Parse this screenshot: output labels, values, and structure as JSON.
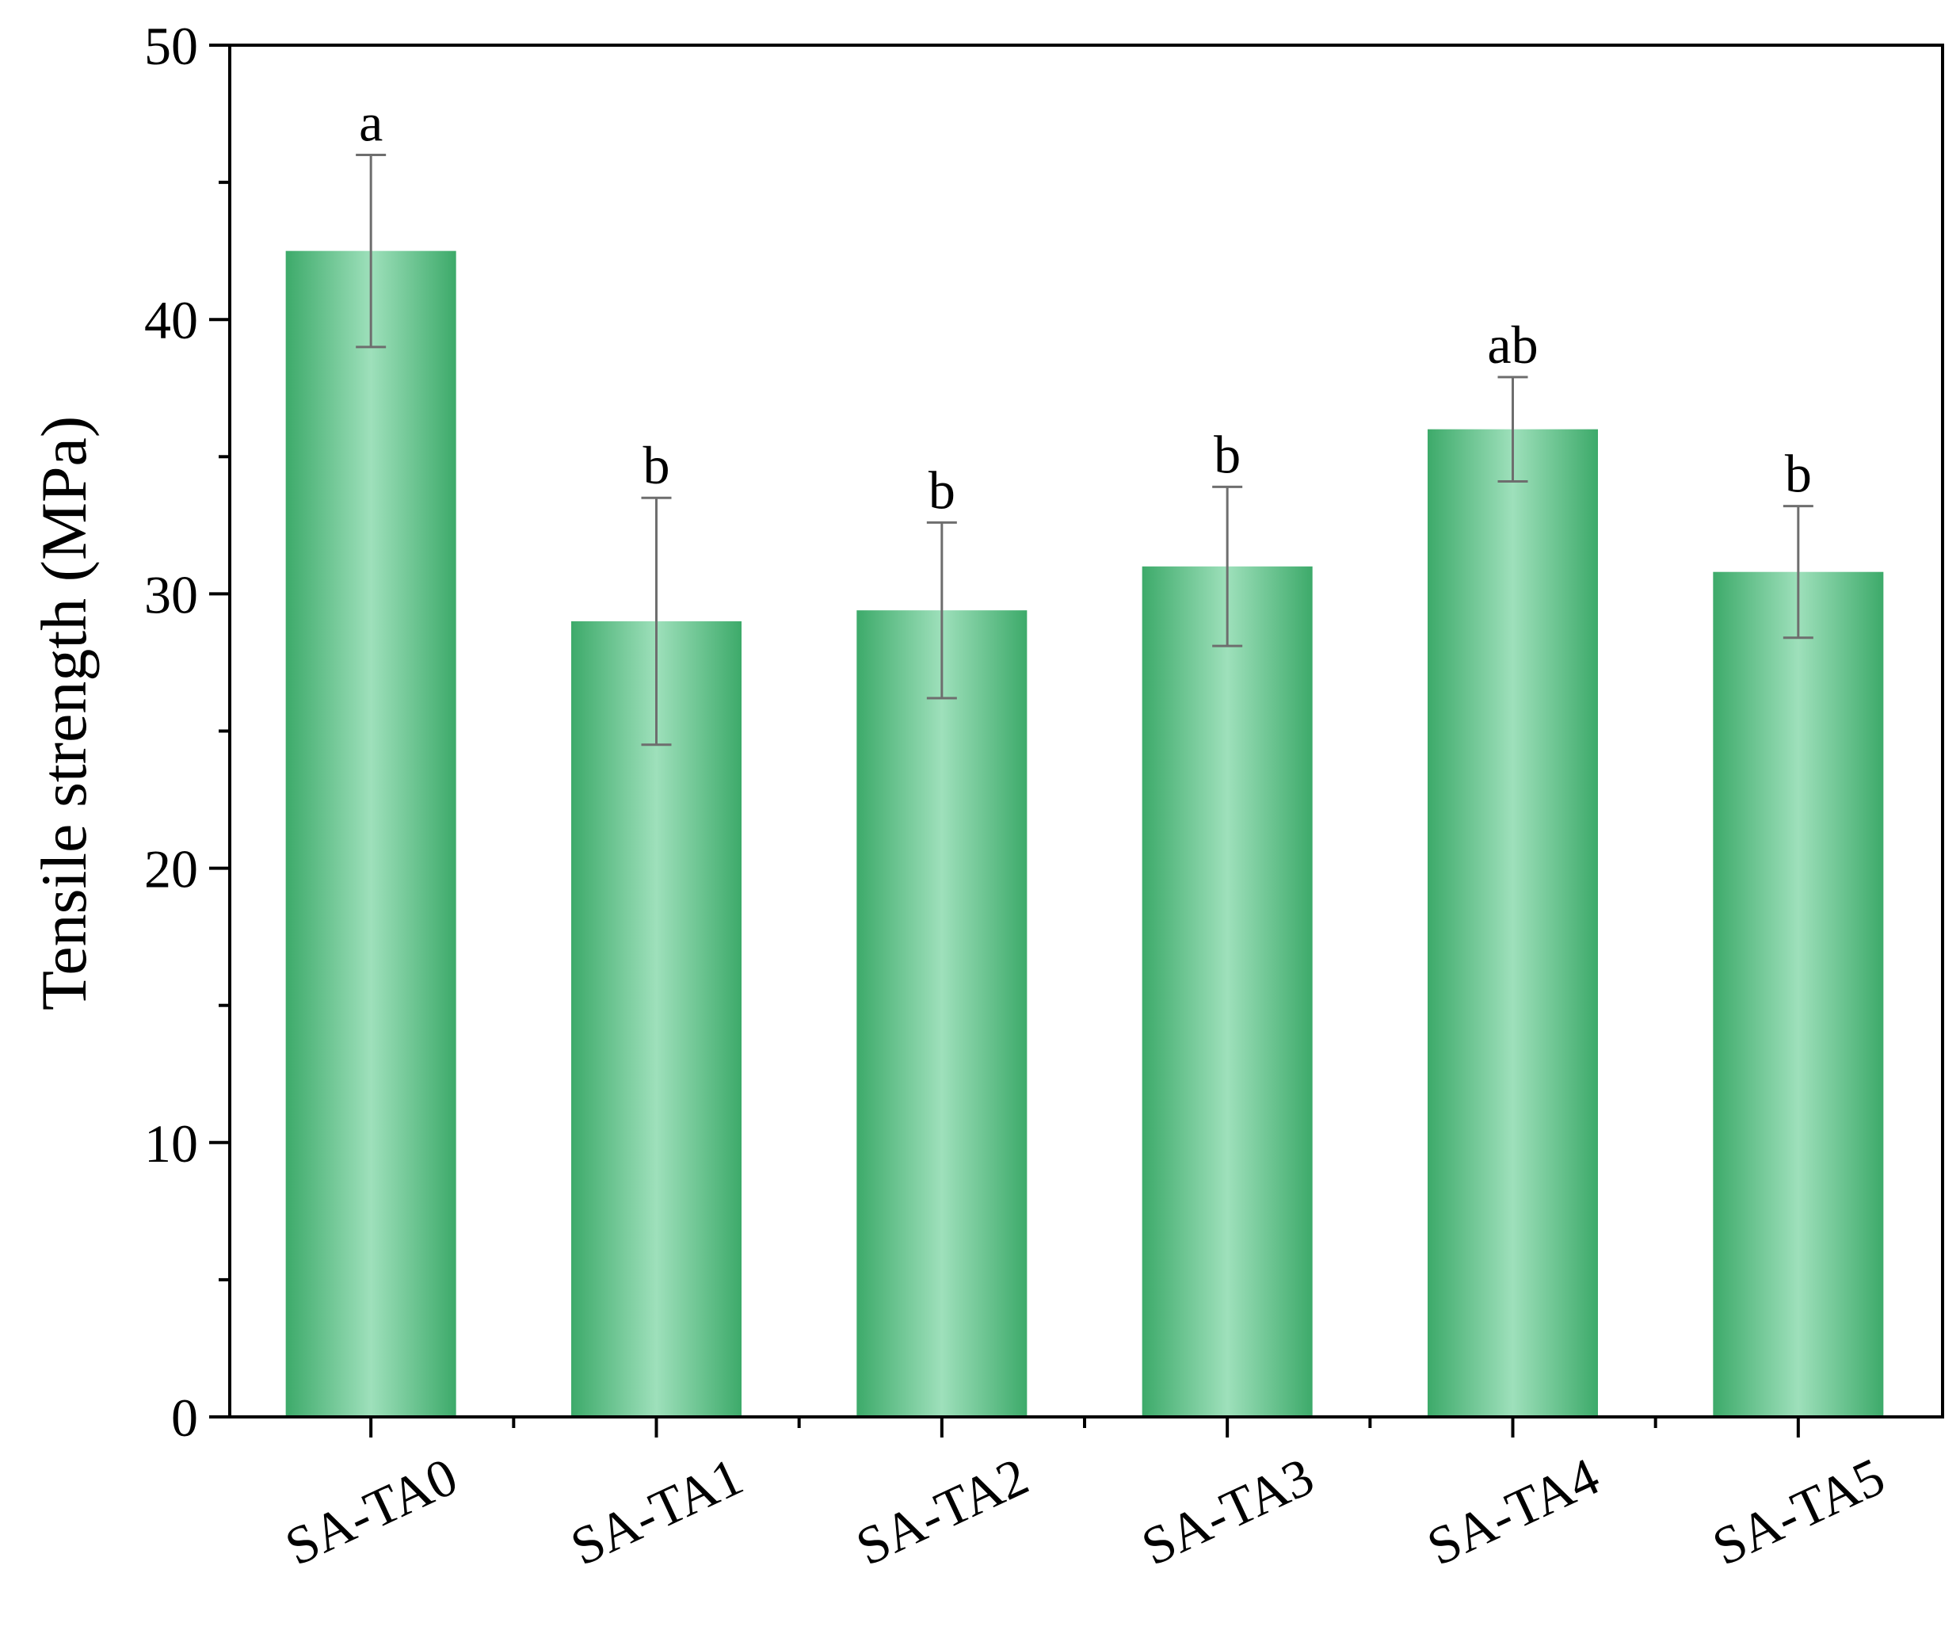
{
  "chart_data": {
    "type": "bar",
    "title": "",
    "xlabel": "",
    "ylabel": "Tensile strength (MPa)",
    "ylim": [
      0,
      50
    ],
    "yticks": [
      0,
      10,
      20,
      30,
      40,
      50
    ],
    "yticks_labels": [
      "0",
      "10",
      "20",
      "30",
      "40",
      "50"
    ],
    "y_minor_step": 5,
    "grid": false,
    "categories": [
      "SA-TA0",
      "SA-TA1",
      "SA-TA2",
      "SA-TA3",
      "SA-TA4",
      "SA-TA5"
    ],
    "values": [
      42.5,
      29.0,
      29.4,
      31.0,
      36.0,
      30.8
    ],
    "errors": [
      3.5,
      4.5,
      3.2,
      2.9,
      1.9,
      2.4
    ],
    "significance_labels": [
      "a",
      "b",
      "b",
      "b",
      "ab",
      "b"
    ],
    "colors": {
      "bar_edge": "#3daa6a",
      "bar_center": "#9ee0bb",
      "error_bar": "#6e6e6e",
      "axis": "#000000"
    }
  }
}
